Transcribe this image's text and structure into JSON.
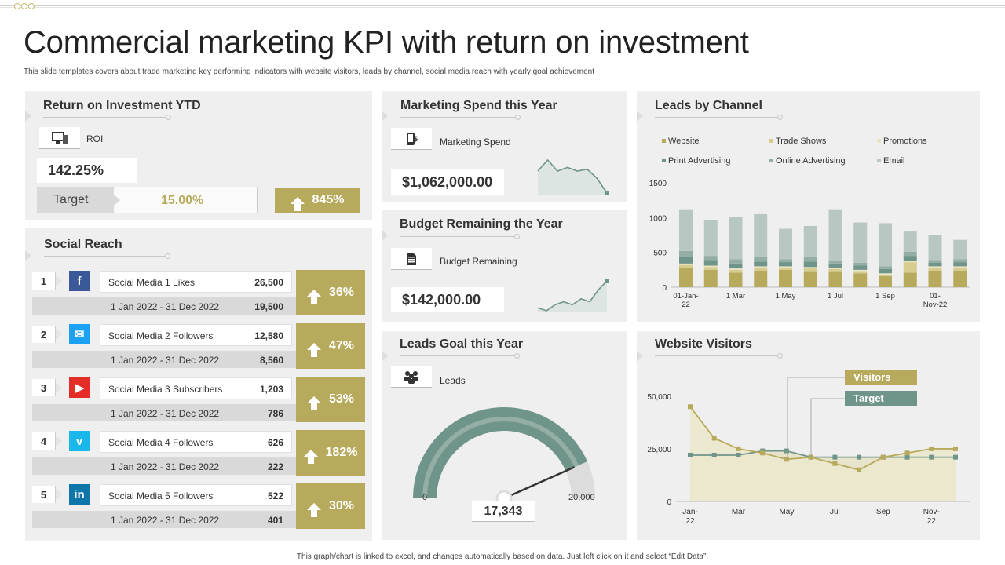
{
  "header": {
    "title": "Commercial marketing KPI with return on investment",
    "subtitle": "This slide templates covers about trade marketing key performing indicators with website visitors, leads by channel, social media reach with yearly goal achievement",
    "footnote": "This graph/chart is linked to excel, and changes automatically based on data. Just left click on it and select “Edit Data”."
  },
  "colors": {
    "gold": "#b8aa5d",
    "teal": "#6f958a",
    "sage": "#a9bcb5",
    "panel": "#efefef"
  },
  "roi": {
    "title": "Return on Investment YTD",
    "icon": "monitor-icon",
    "label": "ROI",
    "value": "142.25%",
    "target_label": "Target",
    "target_value": "15.00%",
    "growth": "845%"
  },
  "spend": {
    "title": "Marketing Spend this Year",
    "icon": "phone-dollar-icon",
    "label": "Marketing Spend",
    "value": "$1,062,000.00",
    "sparkline": [
      6,
      9,
      6,
      7,
      6,
      6.5,
      4,
      0
    ]
  },
  "budget": {
    "title": "Budget Remaining the Year",
    "icon": "document-icon",
    "label": "Budget Remaining",
    "value": "$142,000.00",
    "sparkline": [
      2,
      1,
      3,
      4,
      3,
      5,
      4,
      8,
      11
    ]
  },
  "leads_goal": {
    "title": "Leads Goal this Year",
    "icon": "team-icon",
    "label": "Leads",
    "value": "17,343",
    "min": "0",
    "max": "20,000",
    "current": 17343,
    "maximum": 20000
  },
  "social": {
    "title": "Social Reach",
    "rows": [
      {
        "num": "1",
        "icon": "facebook-icon",
        "glyph": "f",
        "color": "#3b5998",
        "name": "Social Media 1 Likes",
        "value": "26,500",
        "date": "1 Jan 2022 - 31 Dec 2022",
        "prev": "19,500",
        "growth": "36%"
      },
      {
        "num": "2",
        "icon": "twitter-icon",
        "glyph": "✉",
        "color": "#1da1f2",
        "name": "Social Media 2 Followers",
        "value": "12,580",
        "date": "1 Jan 2022 - 31 Dec 2022",
        "prev": "8,560",
        "growth": "47%"
      },
      {
        "num": "3",
        "icon": "youtube-icon",
        "glyph": "▶",
        "color": "#e52d27",
        "name": "Social Media 3 Subscribers",
        "value": "1,203",
        "date": "1 Jan 2022 - 31 Dec 2022",
        "prev": "786",
        "growth": "53%"
      },
      {
        "num": "4",
        "icon": "vimeo-icon",
        "glyph": "v",
        "color": "#1ab7ea",
        "name": "Social Media 4 Followers",
        "value": "626",
        "date": "1 Jan 2022 - 31 Dec 2022",
        "prev": "222",
        "growth": "182%"
      },
      {
        "num": "5",
        "icon": "linkedin-icon",
        "glyph": "in",
        "color": "#0e76a8",
        "name": "Social Media 5 Followers",
        "value": "522",
        "date": "1 Jan 2022 - 31 Dec 2022",
        "prev": "401",
        "growth": "30%"
      }
    ]
  },
  "chart_data": [
    {
      "type": "bar",
      "title": "Leads by Channel",
      "stacked": true,
      "categories": [
        "01-Jan-22",
        "",
        "1 Mar",
        "",
        "1 May",
        "",
        "1 Jul",
        "",
        "1 Sep",
        "",
        "01-Nov-22",
        ""
      ],
      "x_tick_labels": [
        [
          "01-Jan-",
          "22"
        ],
        [
          "1 Mar"
        ],
        [
          "1 May"
        ],
        [
          "1 Jul"
        ],
        [
          "1 Sep"
        ],
        [
          "01-",
          "Nov-22"
        ]
      ],
      "series": [
        {
          "name": "Website",
          "color": "#b8aa5d",
          "values": [
            280,
            250,
            210,
            240,
            250,
            230,
            230,
            200,
            160,
            210,
            240,
            240
          ]
        },
        {
          "name": "Trade Shows",
          "color": "#d6cc8f",
          "values": [
            40,
            40,
            40,
            40,
            30,
            40,
            30,
            30,
            20,
            150,
            40,
            40
          ]
        },
        {
          "name": "Promotions",
          "color": "#e8e3c0",
          "values": [
            20,
            20,
            20,
            20,
            20,
            20,
            20,
            20,
            20,
            20,
            20,
            20
          ]
        },
        {
          "name": "Print Advertising",
          "color": "#6f958a",
          "values": [
            100,
            80,
            70,
            70,
            60,
            80,
            60,
            60,
            60,
            70,
            50,
            60
          ]
        },
        {
          "name": "Online Advertising",
          "color": "#94ada5",
          "values": [
            80,
            60,
            60,
            60,
            40,
            70,
            40,
            40,
            40,
            60,
            40,
            40
          ]
        },
        {
          "name": "Email",
          "color": "#b8c7c2",
          "values": [
            600,
            520,
            610,
            620,
            440,
            440,
            740,
            580,
            620,
            290,
            360,
            280
          ]
        }
      ],
      "ylim": [
        0,
        1500
      ],
      "yticks": [
        "0",
        "500",
        "1000",
        "1500"
      ],
      "legend": "top"
    },
    {
      "type": "line",
      "title": "Website Visitors",
      "x_tick_labels": [
        [
          "Jan-",
          "22"
        ],
        [
          "Mar"
        ],
        [
          "May"
        ],
        [
          "Jul"
        ],
        [
          "Sep"
        ],
        [
          "Nov-",
          "22"
        ]
      ],
      "series": [
        {
          "name": "Visitors",
          "color": "#b8aa5d",
          "values": [
            45000,
            30000,
            25000,
            23000,
            20000,
            21000,
            18000,
            15000,
            21000,
            23000,
            25000,
            25000
          ]
        },
        {
          "name": "Target",
          "color": "#6f958a",
          "values": [
            22000,
            22000,
            22000,
            24000,
            24000,
            21000,
            21000,
            21000,
            21000,
            21000,
            21000,
            21000
          ]
        }
      ],
      "ylim": [
        0,
        60000
      ],
      "yticks": [
        "0",
        "25,000",
        "50,000"
      ],
      "legend": "top-right"
    }
  ]
}
